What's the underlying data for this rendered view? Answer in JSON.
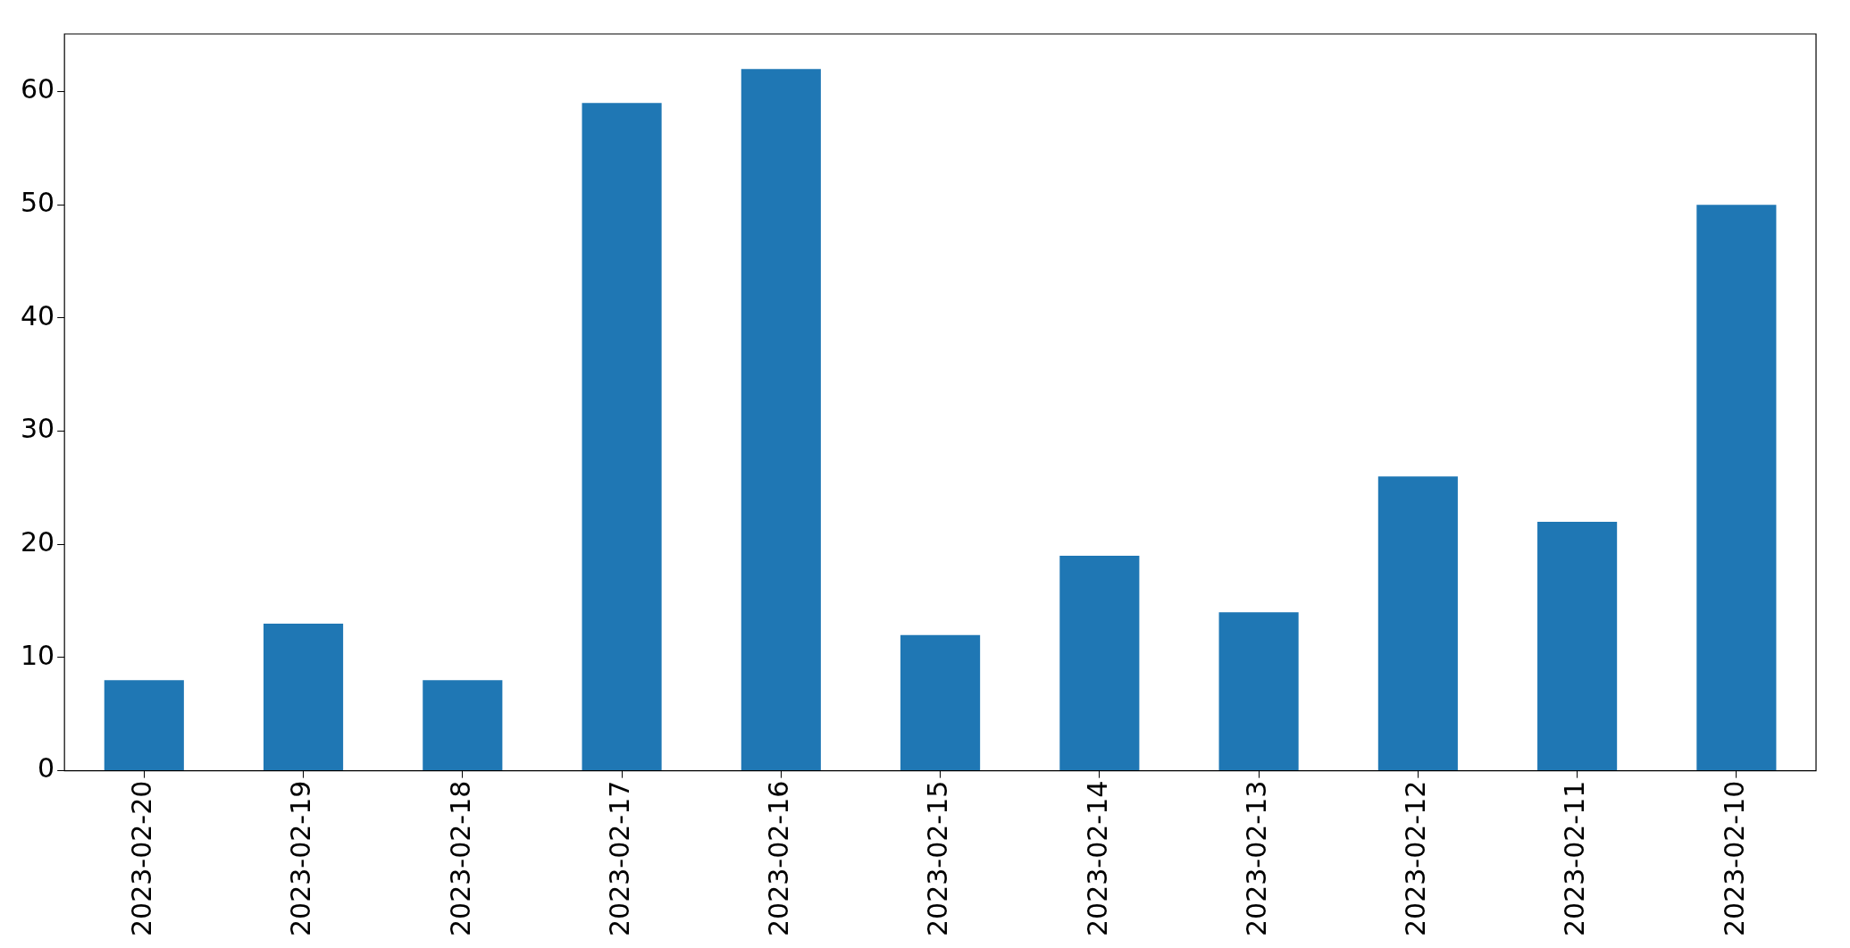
{
  "chart_data": {
    "type": "bar",
    "categories": [
      "2023-02-20",
      "2023-02-19",
      "2023-02-18",
      "2023-02-17",
      "2023-02-16",
      "2023-02-15",
      "2023-02-14",
      "2023-02-13",
      "2023-02-12",
      "2023-02-11",
      "2023-02-10"
    ],
    "values": [
      8,
      13,
      8,
      59,
      62,
      12,
      19,
      14,
      26,
      22,
      50
    ],
    "color": "#1f77b4",
    "ylim": [
      0,
      65.1
    ],
    "yticks": [
      0,
      10,
      20,
      30,
      40,
      50,
      60
    ]
  }
}
